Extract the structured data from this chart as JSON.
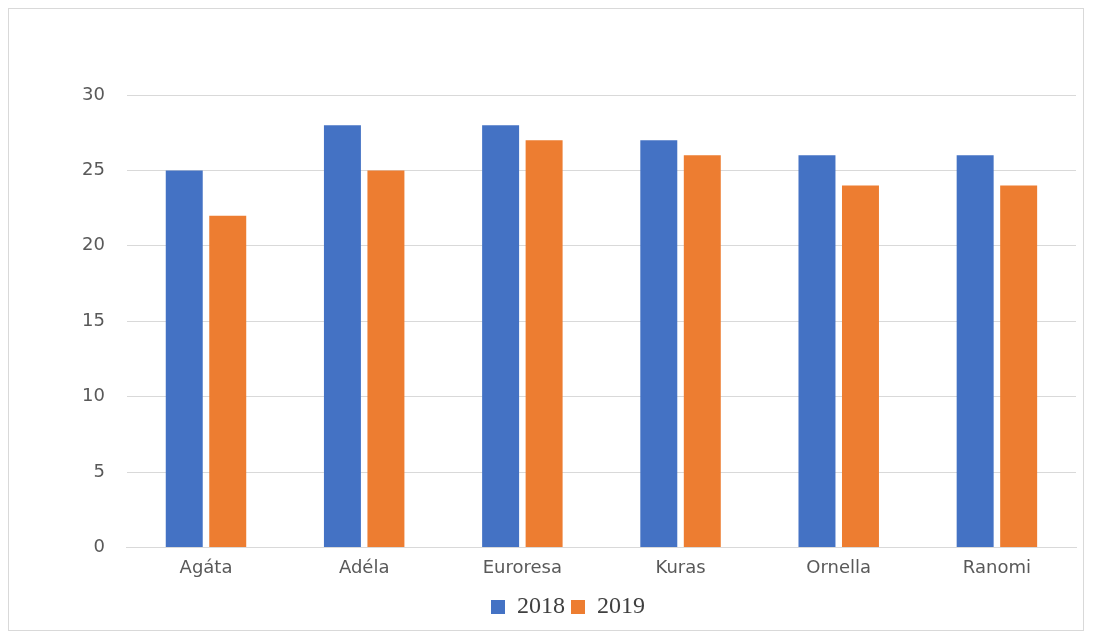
{
  "chart_data": {
    "type": "bar",
    "categories": [
      "Agáta",
      "Adéla",
      "Euroresa",
      "Kuras",
      "Ornella",
      "Ranomi"
    ],
    "series": [
      {
        "name": "2018",
        "color": "#4472c4",
        "values": [
          25,
          28,
          28,
          27,
          26,
          26
        ]
      },
      {
        "name": "2019",
        "color": "#ed7d31",
        "values": [
          22,
          25,
          27,
          26,
          24,
          24
        ]
      }
    ],
    "ylim": [
      0,
      30
    ],
    "yticks": [
      0,
      5,
      10,
      15,
      20,
      25,
      30
    ],
    "grid": "y",
    "legend": "bottom"
  }
}
